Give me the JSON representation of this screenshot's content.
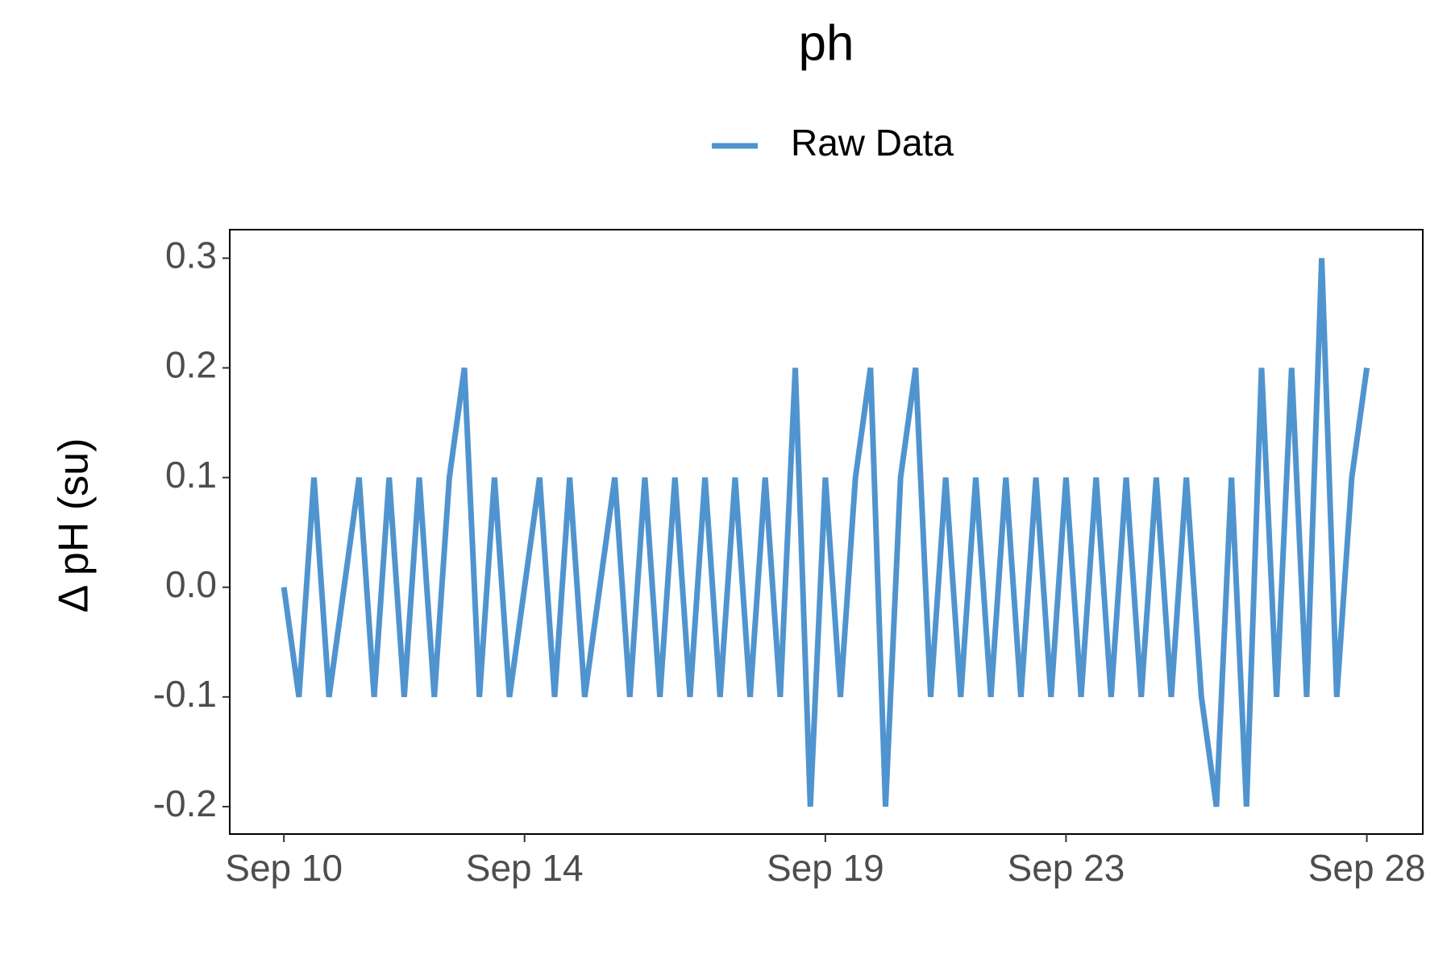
{
  "chart_data": {
    "type": "line",
    "title": "ph",
    "y_label": "Δ pH (su)",
    "x": [
      10,
      10.25,
      10.5,
      10.75,
      11,
      11.25,
      11.5,
      11.75,
      12,
      12.25,
      12.5,
      12.75,
      13,
      13.25,
      13.5,
      13.75,
      14,
      14.25,
      14.5,
      14.75,
      15,
      15.25,
      15.5,
      15.75,
      16,
      16.25,
      16.5,
      16.75,
      17,
      17.25,
      17.5,
      17.75,
      18,
      18.25,
      18.5,
      18.75,
      19,
      19.25,
      19.5,
      19.75,
      20,
      20.25,
      20.5,
      20.75,
      21,
      21.25,
      21.5,
      21.75,
      22,
      22.25,
      22.5,
      22.75,
      23,
      23.25,
      23.5,
      23.75,
      24,
      24.25,
      24.5,
      24.75,
      25,
      25.25,
      25.5,
      25.75,
      26,
      26.25,
      26.5,
      26.75,
      27,
      27.25,
      27.5,
      27.75,
      28
    ],
    "series": [
      {
        "name": "Raw Data",
        "color": "#5094cf",
        "values": [
          0,
          -0.1,
          0.1,
          -0.1,
          0,
          0.1,
          -0.1,
          0.1,
          -0.1,
          0.1,
          -0.1,
          0.1,
          0.2,
          -0.1,
          0.1,
          -0.1,
          0,
          0.1,
          -0.1,
          0.1,
          -0.1,
          0,
          0.1,
          -0.1,
          0.1,
          -0.1,
          0.1,
          -0.1,
          0.1,
          -0.1,
          0.1,
          -0.1,
          0.1,
          -0.1,
          0.2,
          -0.2,
          0.1,
          -0.1,
          0.1,
          0.2,
          -0.2,
          0.1,
          0.2,
          -0.1,
          0.1,
          -0.1,
          0.1,
          -0.1,
          0.1,
          -0.1,
          0.1,
          -0.1,
          0.1,
          -0.1,
          0.1,
          -0.1,
          0.1,
          -0.1,
          0.1,
          -0.1,
          0.1,
          -0.1,
          -0.2,
          0.1,
          -0.2,
          0.2,
          -0.1,
          0.2,
          -0.1,
          0.3,
          -0.1,
          0.1,
          0.2
        ]
      }
    ],
    "xlim": [
      9.1,
      28.93
    ],
    "xticks": [
      {
        "value": 10,
        "label": "Sep 10"
      },
      {
        "value": 14,
        "label": "Sep 14"
      },
      {
        "value": 19,
        "label": "Sep 19"
      },
      {
        "value": 23,
        "label": "Sep 23"
      },
      {
        "value": 28,
        "label": "Sep 28"
      }
    ],
    "ylim": [
      -0.225,
      0.326
    ],
    "yticks": [
      -0.2,
      -0.1,
      {
        "value": 0,
        "label": "0.0"
      },
      0.1,
      0.2,
      0.3
    ],
    "grid": false,
    "legend": "top"
  }
}
